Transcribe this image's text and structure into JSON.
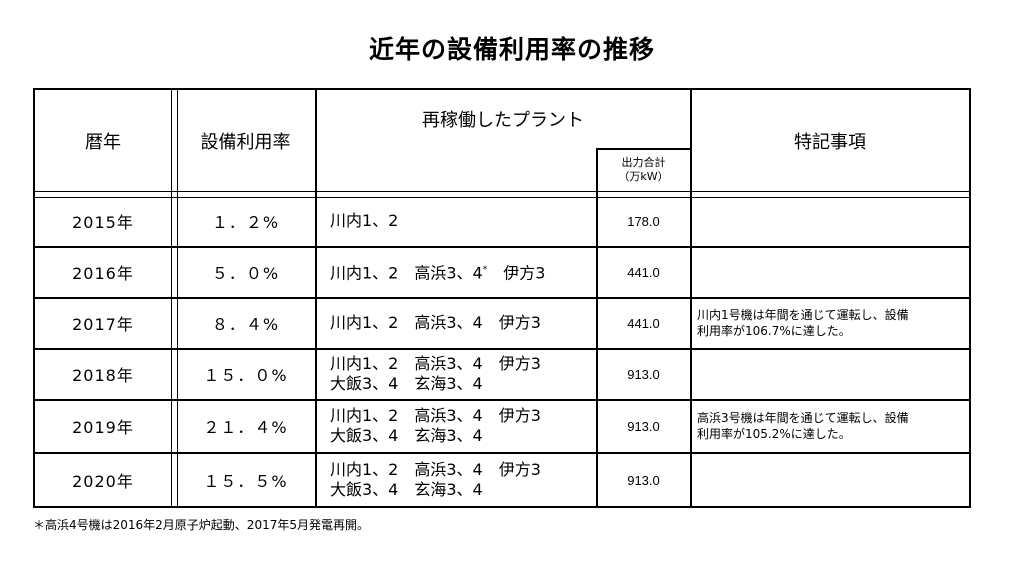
{
  "title": "近年の設備利用率の推移",
  "headers": {
    "year": "暦年",
    "rate": "設備利用率",
    "plants": "再稼働したプラント",
    "output_line1": "出力合計",
    "output_line2": "（万kW）",
    "notes": "特記事項"
  },
  "rows": [
    {
      "year": "2015年",
      "rate": "１．２%",
      "plants1": "川内1、2",
      "plants2": "",
      "output": "178.0",
      "note1": "",
      "note2": ""
    },
    {
      "year": "2016年",
      "rate": "５．０%",
      "plants1": "川内1、2　高浜3、4",
      "plants1_mark": "*",
      "plants1_tail": "　伊方3",
      "plants2": "",
      "output": "441.0",
      "note1": "",
      "note2": ""
    },
    {
      "year": "2017年",
      "rate": "８．４%",
      "plants1": "川内1、2　高浜3、4　伊方3",
      "plants2": "",
      "output": "441.0",
      "note1": "川内1号機は年間を通じて運転し、設備",
      "note2": "利用率が106.7%に達した。"
    },
    {
      "year": "2018年",
      "rate": "１５．０%",
      "plants1": "川内1、2　高浜3、4　伊方3",
      "plants2": "大飯3、4　玄海3、4",
      "output": "913.0",
      "note1": "",
      "note2": ""
    },
    {
      "year": "2019年",
      "rate": "２１．４%",
      "plants1": "川内1、2　高浜3、4　伊方3",
      "plants2": "大飯3、4　玄海3、4",
      "output": "913.0",
      "note1": "高浜3号機は年間を通じて運転し、設備",
      "note2": "利用率が105.2%に達した。"
    },
    {
      "year": "2020年",
      "rate": "１５．５%",
      "plants1": "川内1、2　高浜3、4　伊方3",
      "plants2": "大飯3、4　玄海3、4",
      "output": "913.0",
      "note1": "",
      "note2": ""
    }
  ],
  "footnote": "＊高浜4号機は2016年2月原子炉起動、2017年5月発電再開。"
}
